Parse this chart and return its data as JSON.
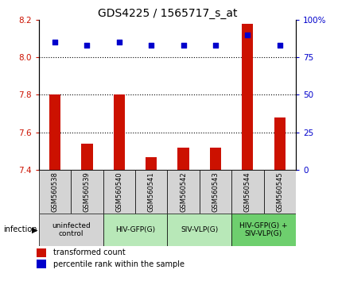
{
  "title": "GDS4225 / 1565717_s_at",
  "samples": [
    "GSM560538",
    "GSM560539",
    "GSM560540",
    "GSM560541",
    "GSM560542",
    "GSM560543",
    "GSM560544",
    "GSM560545"
  ],
  "transformed_counts": [
    7.8,
    7.54,
    7.8,
    7.47,
    7.52,
    7.52,
    8.18,
    7.68
  ],
  "percentile_ranks": [
    85,
    83,
    85,
    83,
    83,
    83,
    90,
    83
  ],
  "ylim_left": [
    7.4,
    8.2
  ],
  "ylim_right": [
    0,
    100
  ],
  "yticks_left": [
    7.4,
    7.6,
    7.8,
    8.0,
    8.2
  ],
  "yticks_right": [
    0,
    25,
    50,
    75,
    100
  ],
  "groups": [
    {
      "label": "uninfected\ncontrol",
      "start": 0,
      "end": 2,
      "color": "#d4d4d4"
    },
    {
      "label": "HIV-GFP(G)",
      "start": 2,
      "end": 4,
      "color": "#b8e8b8"
    },
    {
      "label": "SIV-VLP(G)",
      "start": 4,
      "end": 6,
      "color": "#b8e8b8"
    },
    {
      "label": "HIV-GFP(G) +\nSIV-VLP(G)",
      "start": 6,
      "end": 8,
      "color": "#6ecf6e"
    }
  ],
  "bar_color": "#cc1100",
  "dot_color": "#0000cc",
  "infection_label": "infection",
  "legend_bar_label": "transformed count",
  "legend_dot_label": "percentile rank within the sample",
  "sample_box_color": "#d4d4d4",
  "title_fontsize": 10,
  "tick_fontsize": 7.5,
  "bar_width": 0.35
}
